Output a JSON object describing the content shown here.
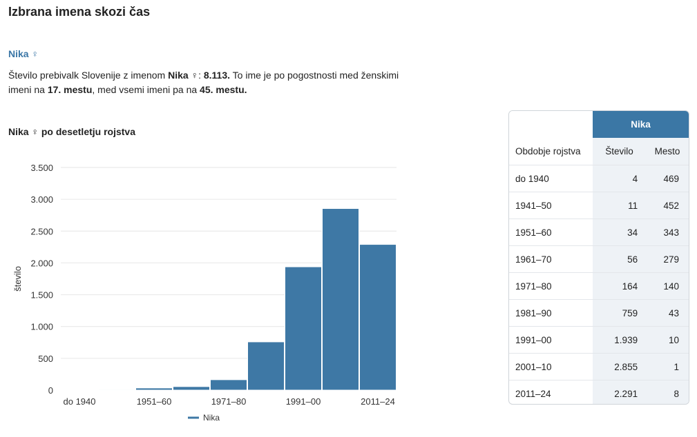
{
  "page": {
    "title": "Izbrana imena skozi čas"
  },
  "name_section": {
    "name": "Nika",
    "gender_symbol": "♀",
    "description": {
      "part1": "Število prebivalk Slovenije z imenom ",
      "name": "Nika",
      "symbol": " ♀",
      "part2": ": ",
      "count": "8.113.",
      "part3": " To ime je po pogostnosti med ženskimi imeni na ",
      "rank_female": "17. mestu",
      "part4": ", med vsemi imeni pa na ",
      "rank_all": "45. mestu."
    }
  },
  "chart_title": {
    "name": "Nika",
    "symbol": " ♀",
    "rest": " po desetletju rojstva"
  },
  "colors": {
    "bar": "#3e78a5",
    "accent": "#3a76a6"
  },
  "chart_data": {
    "type": "bar",
    "categories": [
      "do 1940",
      "1941–50",
      "1951–60",
      "1961–70",
      "1971–80",
      "1981–90",
      "1991–00",
      "2001–10",
      "2011–24"
    ],
    "x_tick_labels": [
      "do 1940",
      "1951–60",
      "1971–80",
      "1991–00",
      "2011–24"
    ],
    "series": [
      {
        "name": "Nika",
        "values": [
          4,
          11,
          34,
          56,
          164,
          759,
          1939,
          2855,
          2291
        ]
      }
    ],
    "ylabel": "število",
    "ylim": [
      0,
      3500
    ],
    "y_ticks": [
      0,
      500,
      1000,
      1500,
      2000,
      2500,
      3000,
      3500
    ],
    "y_tick_labels": [
      "0",
      "500",
      "1.000",
      "1.500",
      "2.000",
      "2.500",
      "3.000",
      "3.500"
    ],
    "grid": true,
    "legend_position": "bottom"
  },
  "table": {
    "name_header": "Nika",
    "col_period": "Obdobje rojstva",
    "col_count": "Število",
    "col_rank": "Mesto",
    "rows": [
      {
        "period": "do 1940",
        "count": "4",
        "rank": "469"
      },
      {
        "period": "1941–50",
        "count": "11",
        "rank": "452"
      },
      {
        "period": "1951–60",
        "count": "34",
        "rank": "343"
      },
      {
        "period": "1961–70",
        "count": "56",
        "rank": "279"
      },
      {
        "period": "1971–80",
        "count": "164",
        "rank": "140"
      },
      {
        "period": "1981–90",
        "count": "759",
        "rank": "43"
      },
      {
        "period": "1991–00",
        "count": "1.939",
        "rank": "10"
      },
      {
        "period": "2001–10",
        "count": "2.855",
        "rank": "1"
      },
      {
        "period": "2011–24",
        "count": "2.291",
        "rank": "8"
      }
    ]
  }
}
